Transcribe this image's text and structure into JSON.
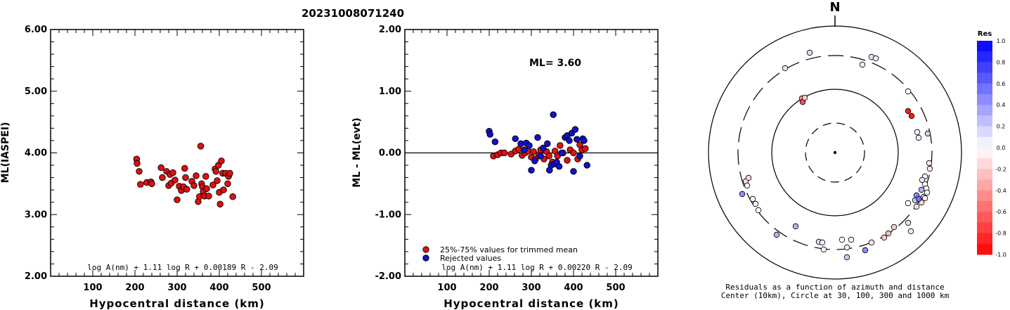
{
  "page": {
    "title": "20231008071240"
  },
  "left_panel": {
    "formula": "log A(nm) + 1.11 log R + 0.00189 R - 2.09"
  },
  "middle_panel": {
    "ml_label": "ML= 3.60",
    "legend": {
      "item1": "25%-75% values for trimmed mean",
      "item2": "Rejected values"
    },
    "formula": "log A(nm) + 1.11 log R + 0.00220 R - 2.09"
  },
  "right_panel": {
    "north_label": "N",
    "caption_line1": "Residuals as a function of azimuth and distance",
    "caption_line2": "Center (10km), Circle at 30, 100, 300 and 1000 km",
    "colorbar": {
      "title": "Res",
      "ticks": [
        "1.0",
        "0.8",
        "0.6",
        "0.4",
        "0.2",
        "0.0",
        "-0.2",
        "-0.4",
        "-0.6",
        "-0.8",
        "-1.0"
      ]
    }
  },
  "colors": {
    "accepted": "#dd1111",
    "rejected": "#1111cc"
  },
  "chart_data": [
    {
      "type": "scatter",
      "title": "",
      "xlabel": "Hypocentral distance (km)",
      "ylabel": "ML(IASPEI)",
      "xlim": [
        0,
        600
      ],
      "ylim": [
        2.0,
        6.0
      ],
      "xticks": [
        "100",
        "200",
        "300",
        "400",
        "500"
      ],
      "yticks": [
        "2.00",
        "3.00",
        "4.00",
        "5.00",
        "6.00"
      ],
      "series": [
        {
          "x": [
            204,
            205,
            210,
            213,
            228,
            238,
            240,
            262,
            265,
            275,
            280,
            283,
            286,
            290,
            295,
            300,
            305,
            310,
            315,
            318,
            320,
            323,
            335,
            340,
            345,
            350,
            353,
            356,
            358,
            360,
            362,
            365,
            368,
            370,
            375,
            385,
            390,
            392,
            395,
            398,
            400,
            402,
            405,
            408,
            410,
            415,
            420,
            422,
            425,
            432
          ],
          "y": [
            3.9,
            3.83,
            3.7,
            3.49,
            3.52,
            3.53,
            3.5,
            3.76,
            3.6,
            3.7,
            3.47,
            3.65,
            3.51,
            3.68,
            3.56,
            3.24,
            3.46,
            3.39,
            3.45,
            3.75,
            3.6,
            3.41,
            3.54,
            3.47,
            3.63,
            3.21,
            3.29,
            4.11,
            3.5,
            3.45,
            3.37,
            3.3,
            3.62,
            3.42,
            3.3,
            3.48,
            3.74,
            3.7,
            3.55,
            3.8,
            3.36,
            3.17,
            3.87,
            3.67,
            3.4,
            3.67,
            3.5,
            3.62,
            3.67,
            3.29
          ]
        }
      ]
    },
    {
      "type": "scatter",
      "title": "",
      "xlabel": "Hypocentral distance (km)",
      "ylabel": "ML - ML(evt)",
      "xlim": [
        0,
        600
      ],
      "ylim": [
        -2.0,
        2.0
      ],
      "xticks": [
        "100",
        "200",
        "300",
        "400",
        "500"
      ],
      "yticks": [
        "-2.00",
        "-1.00",
        "0.00",
        "1.00",
        "2.00"
      ],
      "reference_line": 0.0,
      "series": [
        {
          "name": "25%-75% values for trimmed mean",
          "x": [
            210,
            220,
            228,
            236,
            252,
            262,
            270,
            278,
            285,
            292,
            300,
            305,
            310,
            318,
            322,
            330,
            336,
            342,
            350,
            356,
            362,
            368,
            375,
            385,
            392,
            400,
            410,
            415,
            420,
            428
          ],
          "y": [
            -0.05,
            -0.03,
            0.0,
            0.0,
            -0.02,
            0.03,
            0.06,
            -0.04,
            0.0,
            0.03,
            -0.07,
            0.02,
            -0.1,
            -0.03,
            0.05,
            -0.1,
            0.02,
            -0.05,
            -0.15,
            0.03,
            -0.05,
            0.12,
            0.0,
            -0.12,
            0.05,
            0.0,
            -0.1,
            0.13,
            0.05,
            0.07
          ]
        },
        {
          "name": "Rejected values",
          "x": [
            200,
            202,
            214,
            262,
            275,
            283,
            288,
            295,
            300,
            308,
            315,
            322,
            328,
            338,
            343,
            347,
            352,
            355,
            360,
            366,
            372,
            380,
            385,
            390,
            396,
            400,
            404,
            408,
            415,
            422,
            425,
            432
          ],
          "y": [
            0.35,
            0.3,
            0.18,
            0.23,
            0.15,
            0.05,
            0.16,
            0.12,
            -0.28,
            -0.13,
            0.25,
            -0.05,
            0.08,
            0.15,
            -0.28,
            -0.2,
            0.62,
            -0.18,
            -0.15,
            -0.22,
            0.0,
            0.25,
            0.28,
            0.2,
            0.32,
            -0.3,
            0.38,
            0.22,
            -0.05,
            0.23,
            0.2,
            -0.2
          ]
        }
      ]
    }
  ]
}
